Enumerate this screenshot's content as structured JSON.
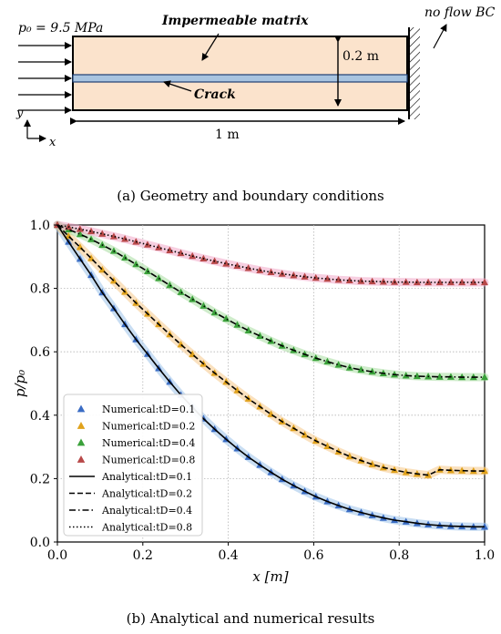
{
  "panel_a": {
    "pressure_label": "p₀ = 9.5 MPa",
    "matrix_label": "Impermeable matrix",
    "crack_label": "Crack",
    "height_label": "0.2 m",
    "length_label": "1 m",
    "bc_label": "no flow BC",
    "axis_x": "x",
    "axis_y": "y",
    "caption": "(a) Geometry and boundary conditions"
  },
  "panel_b": {
    "caption": "(b) Analytical and numerical results"
  },
  "chart_data": {
    "type": "line",
    "xlabel": "x [m]",
    "ylabel": "p/p₀",
    "xlim": [
      0,
      1
    ],
    "ylim": [
      0,
      1
    ],
    "xticks": [
      "0.0",
      "0.2",
      "0.4",
      "0.6",
      "0.8",
      "1.0"
    ],
    "yticks": [
      "0.0",
      "0.2",
      "0.4",
      "0.6",
      "0.8",
      "1.0"
    ],
    "grid": true,
    "legend_position": "lower-left",
    "series": [
      {
        "name": "Numerical:tD=0.1",
        "kind": "numerical",
        "color": "#3a6cc4",
        "halo": "#9cc3ea",
        "values": [
          1.0,
          0.947,
          0.893,
          0.842,
          0.787,
          0.737,
          0.687,
          0.639,
          0.593,
          0.548,
          0.505,
          0.464,
          0.425,
          0.389,
          0.356,
          0.324,
          0.295,
          0.268,
          0.243,
          0.22,
          0.198,
          0.178,
          0.16,
          0.143,
          0.128,
          0.115,
          0.103,
          0.093,
          0.084,
          0.076,
          0.069,
          0.064,
          0.059,
          0.055,
          0.052,
          0.05,
          0.049,
          0.048,
          0.048
        ]
      },
      {
        "name": "Numerical:tD=0.2",
        "kind": "numerical",
        "color": "#e0a21c",
        "halo": "#f5c98a",
        "values": [
          1.0,
          0.965,
          0.93,
          0.895,
          0.859,
          0.824,
          0.789,
          0.754,
          0.72,
          0.687,
          0.655,
          0.623,
          0.592,
          0.562,
          0.533,
          0.505,
          0.478,
          0.452,
          0.427,
          0.403,
          0.38,
          0.359,
          0.338,
          0.319,
          0.302,
          0.285,
          0.27,
          0.257,
          0.245,
          0.235,
          0.227,
          0.22,
          0.215,
          0.211,
          0.228,
          0.226,
          0.225,
          0.224,
          0.224
        ]
      },
      {
        "name": "Numerical:tD=0.4",
        "kind": "numerical",
        "color": "#3aa13a",
        "halo": "#a8dca0",
        "values": [
          1.0,
          0.986,
          0.971,
          0.955,
          0.937,
          0.918,
          0.897,
          0.876,
          0.854,
          0.832,
          0.81,
          0.788,
          0.766,
          0.745,
          0.724,
          0.704,
          0.685,
          0.667,
          0.65,
          0.634,
          0.619,
          0.605,
          0.592,
          0.58,
          0.569,
          0.559,
          0.55,
          0.543,
          0.537,
          0.532,
          0.528,
          0.525,
          0.523,
          0.522,
          0.521,
          0.521,
          0.52,
          0.52,
          0.52
        ]
      },
      {
        "name": "Numerical:tD=0.8",
        "kind": "numerical",
        "color": "#b84848",
        "halo": "#f0a8c8",
        "values": [
          1.0,
          0.994,
          0.987,
          0.98,
          0.972,
          0.964,
          0.956,
          0.947,
          0.938,
          0.929,
          0.92,
          0.911,
          0.902,
          0.894,
          0.886,
          0.878,
          0.871,
          0.864,
          0.857,
          0.851,
          0.846,
          0.841,
          0.837,
          0.833,
          0.83,
          0.827,
          0.825,
          0.823,
          0.822,
          0.821,
          0.82,
          0.82,
          0.819,
          0.819,
          0.819,
          0.819,
          0.819,
          0.819,
          0.819
        ]
      },
      {
        "name": "Analytical:tD=0.1",
        "kind": "analytical",
        "dash": "solid",
        "values": [
          1.0,
          0.947,
          0.893,
          0.842,
          0.787,
          0.737,
          0.687,
          0.639,
          0.593,
          0.548,
          0.505,
          0.464,
          0.425,
          0.389,
          0.356,
          0.324,
          0.295,
          0.268,
          0.243,
          0.22,
          0.198,
          0.178,
          0.16,
          0.143,
          0.128,
          0.115,
          0.103,
          0.093,
          0.084,
          0.076,
          0.069,
          0.064,
          0.059,
          0.055,
          0.052,
          0.05,
          0.049,
          0.048,
          0.048
        ]
      },
      {
        "name": "Analytical:tD=0.2",
        "kind": "analytical",
        "dash": "dashed",
        "values": [
          1.0,
          0.965,
          0.93,
          0.895,
          0.859,
          0.824,
          0.789,
          0.754,
          0.72,
          0.687,
          0.655,
          0.623,
          0.592,
          0.562,
          0.533,
          0.505,
          0.478,
          0.452,
          0.427,
          0.403,
          0.38,
          0.359,
          0.338,
          0.319,
          0.302,
          0.285,
          0.27,
          0.257,
          0.245,
          0.235,
          0.227,
          0.22,
          0.215,
          0.211,
          0.228,
          0.226,
          0.225,
          0.224,
          0.224
        ]
      },
      {
        "name": "Analytical:tD=0.4",
        "kind": "analytical",
        "dash": "dashdot",
        "values": [
          1.0,
          0.986,
          0.971,
          0.955,
          0.937,
          0.918,
          0.897,
          0.876,
          0.854,
          0.832,
          0.81,
          0.788,
          0.766,
          0.745,
          0.724,
          0.704,
          0.685,
          0.667,
          0.65,
          0.634,
          0.619,
          0.605,
          0.592,
          0.58,
          0.569,
          0.559,
          0.55,
          0.543,
          0.537,
          0.532,
          0.528,
          0.525,
          0.523,
          0.522,
          0.521,
          0.521,
          0.52,
          0.52,
          0.52
        ]
      },
      {
        "name": "Analytical:tD=0.8",
        "kind": "analytical",
        "dash": "dotted",
        "values": [
          1.0,
          0.994,
          0.987,
          0.98,
          0.972,
          0.964,
          0.956,
          0.947,
          0.938,
          0.929,
          0.92,
          0.911,
          0.902,
          0.894,
          0.886,
          0.878,
          0.871,
          0.864,
          0.857,
          0.851,
          0.846,
          0.841,
          0.837,
          0.833,
          0.83,
          0.827,
          0.825,
          0.823,
          0.822,
          0.821,
          0.82,
          0.82,
          0.819,
          0.819,
          0.819,
          0.819,
          0.819,
          0.819,
          0.819
        ]
      }
    ],
    "x": [
      0.0,
      0.026,
      0.053,
      0.079,
      0.105,
      0.132,
      0.158,
      0.184,
      0.211,
      0.237,
      0.263,
      0.289,
      0.316,
      0.342,
      0.368,
      0.395,
      0.421,
      0.447,
      0.474,
      0.5,
      0.526,
      0.553,
      0.579,
      0.605,
      0.632,
      0.658,
      0.684,
      0.711,
      0.737,
      0.763,
      0.789,
      0.816,
      0.842,
      0.868,
      0.895,
      0.921,
      0.947,
      0.974,
      1.0
    ]
  }
}
